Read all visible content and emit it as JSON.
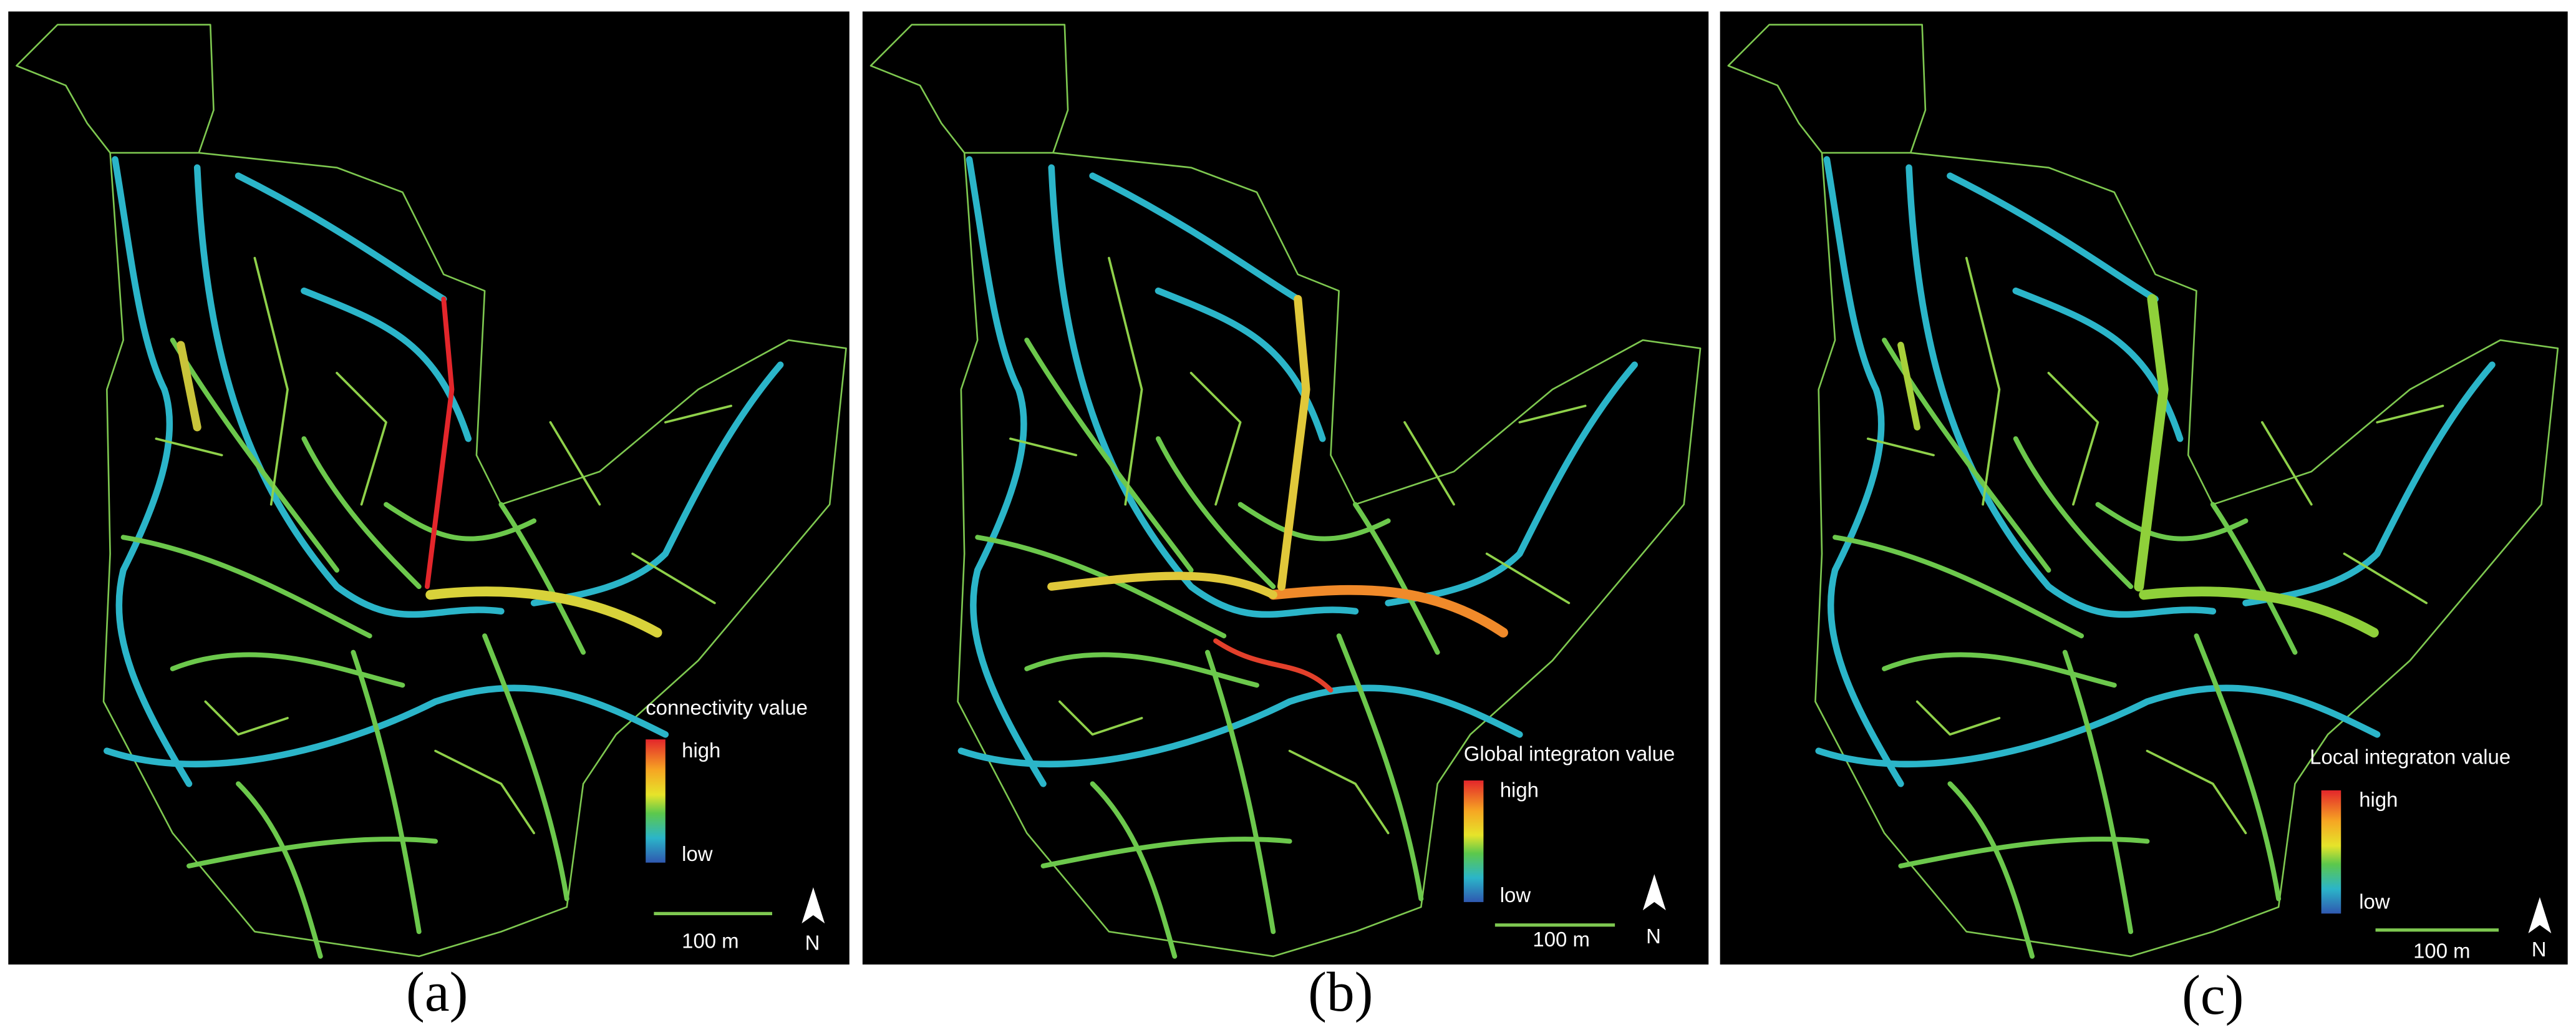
{
  "panels": [
    {
      "caption": "(a)",
      "legend_title": "connectivity value",
      "legend_high": "high",
      "legend_low": "low",
      "scale_label": "100 m",
      "north_label": "N"
    },
    {
      "caption": "(b)",
      "legend_title": "Global integraton value",
      "legend_high": "high",
      "legend_low": "low",
      "scale_label": "100 m",
      "north_label": "N"
    },
    {
      "caption": "(c)",
      "legend_title": "Local integraton value",
      "legend_high": "high",
      "legend_low": "low",
      "scale_label": "100 m",
      "north_label": "N"
    }
  ]
}
